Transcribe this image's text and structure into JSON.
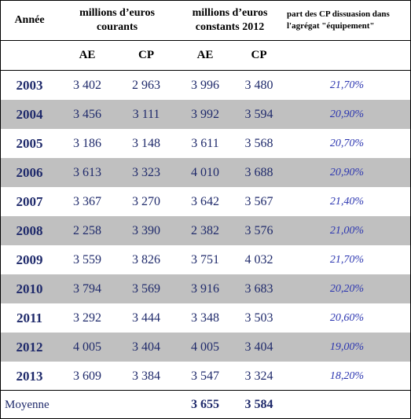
{
  "header": {
    "annee": "Année",
    "courants_line1": "millions d’euros",
    "courants_line2": "courants",
    "constants_line1": "millions d’euros",
    "constants_line2": "constants 2012",
    "part_line1": "part des CP dissuasion dans",
    "part_line2": "l'agrégat \"équipement\"",
    "ae": "AE",
    "cp": "CP"
  },
  "rows": [
    {
      "year": "2003",
      "ae_cur": "3 402",
      "cp_cur": "2 963",
      "ae_const": "3 996",
      "cp_const": "3 480",
      "part": "21,70%"
    },
    {
      "year": "2004",
      "ae_cur": "3 456",
      "cp_cur": "3 111",
      "ae_const": "3 992",
      "cp_const": "3 594",
      "part": "20,90%"
    },
    {
      "year": "2005",
      "ae_cur": "3 186",
      "cp_cur": "3 148",
      "ae_const": "3 611",
      "cp_const": "3 568",
      "part": "20,70%"
    },
    {
      "year": "2006",
      "ae_cur": "3 613",
      "cp_cur": "3 323",
      "ae_const": "4 010",
      "cp_const": "3 688",
      "part": "20,90%"
    },
    {
      "year": "2007",
      "ae_cur": "3 367",
      "cp_cur": "3 270",
      "ae_const": "3 642",
      "cp_const": "3 567",
      "part": "21,40%"
    },
    {
      "year": "2008",
      "ae_cur": "2 258",
      "cp_cur": "3 390",
      "ae_const": "2 382",
      "cp_const": "3 576",
      "part": "21,00%"
    },
    {
      "year": "2009",
      "ae_cur": "3 559",
      "cp_cur": "3 826",
      "ae_const": "3 751",
      "cp_const": "4 032",
      "part": "21,70%"
    },
    {
      "year": "2010",
      "ae_cur": "3 794",
      "cp_cur": "3 569",
      "ae_const": "3 916",
      "cp_const": "3 683",
      "part": "20,20%"
    },
    {
      "year": "2011",
      "ae_cur": "3 292",
      "cp_cur": "3 444",
      "ae_const": "3 348",
      "cp_const": "3 503",
      "part": "20,60%"
    },
    {
      "year": "2012",
      "ae_cur": "4 005",
      "cp_cur": "3 404",
      "ae_const": "4 005",
      "cp_const": "3 404",
      "part": "19,00%"
    },
    {
      "year": "2013",
      "ae_cur": "3 609",
      "cp_cur": "3 384",
      "ae_const": "3 547",
      "cp_const": "3 324",
      "part": "18,20%"
    }
  ],
  "footer": {
    "label": "Moyenne",
    "ae_const": "3 655",
    "cp_const": "3 584"
  },
  "colors": {
    "row_shade": "#c0c0c0",
    "value_text": "#1f2a6b",
    "percent_text": "#2b35b0"
  }
}
